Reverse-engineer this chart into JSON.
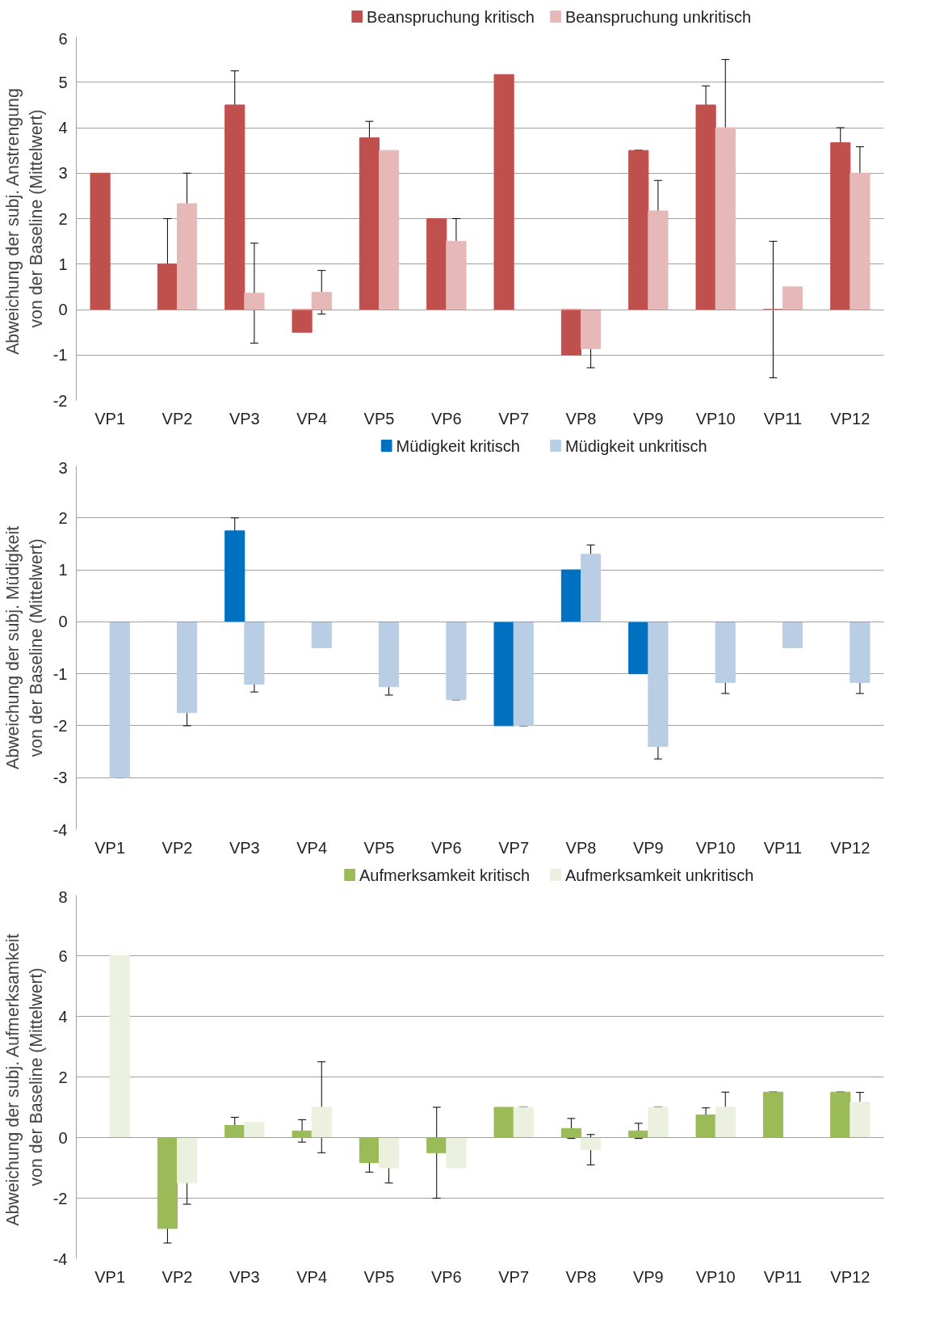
{
  "chart_data": [
    {
      "type": "bar",
      "ylabel": "Abweichung  der subj. Anstrengung\nvon der Baseline (Mittelwert)",
      "categories": [
        "VP1",
        "VP2",
        "VP3",
        "VP4",
        "VP5",
        "VP6",
        "VP7",
        "VP8",
        "VP9",
        "VP10",
        "VP11",
        "VP12"
      ],
      "ylim": [
        -2,
        6
      ],
      "yticks": [
        -2,
        -1,
        0,
        1,
        2,
        3,
        4,
        5,
        6
      ],
      "grid": "y",
      "legend": "top",
      "series": [
        {
          "name": "Beanspruchung kritisch",
          "color": "#c0504d",
          "values": [
            3,
            1,
            4.5,
            -0.5,
            3.78,
            2,
            5.17,
            -1,
            3.5,
            4.5,
            0,
            3.67
          ],
          "errors": [
            null,
            1,
            0.75,
            null,
            0.36,
            null,
            null,
            null,
            0,
            0.42,
            1.5,
            0.33
          ]
        },
        {
          "name": "Beanspruchung unkritisch",
          "color": "#e6b9b8",
          "values": [
            null,
            2.33,
            0.36,
            0.38,
            3.5,
            1.5,
            null,
            -0.86,
            2.17,
            4,
            0.5,
            3
          ],
          "errors": [
            null,
            0.67,
            1.1,
            0.48,
            null,
            0.5,
            null,
            0.42,
            0.67,
            1.5,
            null,
            0.58
          ]
        }
      ]
    },
    {
      "type": "bar",
      "ylabel": "Abweichung der subj. Müdigkeit\nvon der Baseline (Mittelwert)",
      "categories": [
        "VP1",
        "VP2",
        "VP3",
        "VP4",
        "VP5",
        "VP6",
        "VP7",
        "VP8",
        "VP9",
        "VP10",
        "VP11",
        "VP12"
      ],
      "ylim": [
        -4,
        3
      ],
      "yticks": [
        -4,
        -3,
        -2,
        -1,
        0,
        1,
        2,
        3
      ],
      "grid": "y",
      "legend": "top",
      "series": [
        {
          "name": "Müdigkeit kritisch",
          "color": "#0070c0",
          "values": [
            null,
            null,
            1.75,
            null,
            null,
            null,
            -2,
            1,
            -1,
            null,
            null,
            null
          ],
          "errors": [
            null,
            null,
            0.25,
            null,
            null,
            null,
            null,
            null,
            null,
            null,
            null,
            null
          ]
        },
        {
          "name": "Müdigkeit unkritisch",
          "color": "#b9cde5",
          "values": [
            -3,
            -1.75,
            -1.2,
            -0.5,
            -1.25,
            -1.5,
            -2,
            1.3,
            -2.4,
            -1.17,
            -0.5,
            -1.17
          ],
          "errors": [
            0,
            0.25,
            0.15,
            0,
            0.16,
            0,
            0,
            0.18,
            0.24,
            0.21,
            0,
            0.21
          ]
        }
      ]
    },
    {
      "type": "bar",
      "ylabel": "Abweichung  der subj. Aufmerksamkeit\nvon der Baseline (Mittelwert)",
      "categories": [
        "VP1",
        "VP2",
        "VP3",
        "VP4",
        "VP5",
        "VP6",
        "VP7",
        "VP8",
        "VP9",
        "VP10",
        "VP11",
        "VP12"
      ],
      "ylim": [
        -4,
        8
      ],
      "yticks": [
        -4,
        -2,
        0,
        2,
        4,
        6,
        8
      ],
      "grid": "y",
      "legend": "top",
      "series": [
        {
          "name": "Aufmerksamkeit kritisch",
          "color": "#9bbb59",
          "values": [
            null,
            -3,
            0.4,
            0.22,
            -0.83,
            -0.5,
            1,
            0.3,
            0.22,
            0.75,
            1.5,
            1.5
          ],
          "errors": [
            null,
            0.48,
            0.27,
            0.37,
            0.31,
            1.5,
            null,
            0.33,
            0.25,
            0.23,
            0,
            0
          ]
        },
        {
          "name": "Aufmerksamkeit unkritisch",
          "color": "#ebf1de",
          "values": [
            6,
            -1.5,
            0.5,
            1,
            -1,
            -1,
            1,
            -0.4,
            1,
            1,
            null,
            1.17
          ],
          "errors": [
            null,
            0.7,
            null,
            1.5,
            0.5,
            null,
            0,
            0.5,
            0,
            0.5,
            null,
            0.32
          ]
        }
      ]
    }
  ]
}
